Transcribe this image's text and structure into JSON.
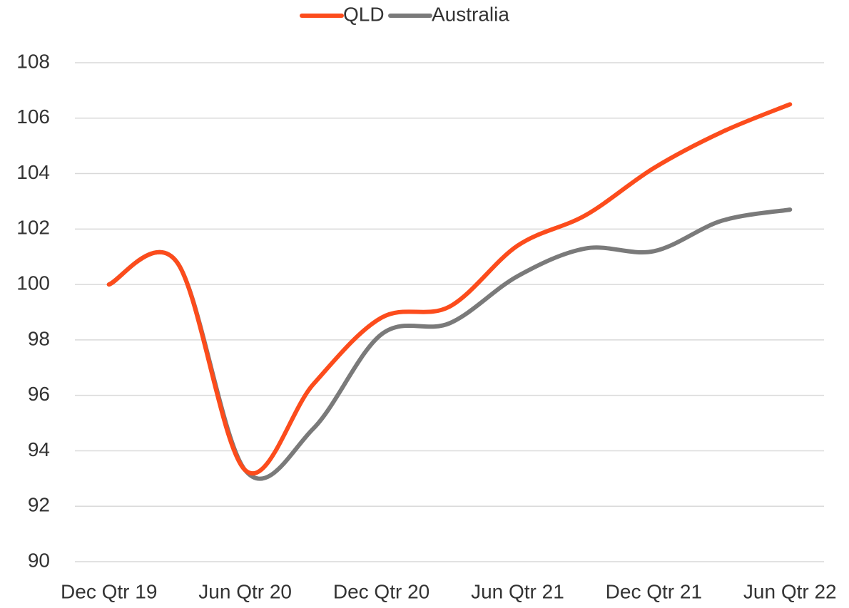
{
  "chart_data": {
    "type": "line",
    "categories": [
      "Dec Qtr 19",
      null,
      "Jun Qtr 20",
      null,
      "Dec Qtr 20",
      null,
      "Jun Qtr 21",
      null,
      "Dec Qtr 21",
      null,
      "Jun Qtr 22"
    ],
    "series": [
      {
        "name": "QLD",
        "color": "#fc4c1c",
        "values": [
          100,
          100.8,
          93.3,
          96.4,
          98.8,
          99.2,
          101.4,
          102.5,
          104.2,
          105.5,
          106.5
        ]
      },
      {
        "name": "Australia",
        "color": "#7a7a7a",
        "values": [
          100,
          100.8,
          93.3,
          94.8,
          98.2,
          98.6,
          100.3,
          101.3,
          101.2,
          102.3,
          102.7
        ]
      }
    ],
    "ylim": [
      90,
      108
    ],
    "yticks": [
      90,
      92,
      94,
      96,
      98,
      100,
      102,
      104,
      106,
      108
    ],
    "grid": true,
    "legend": "top",
    "smooth": true
  }
}
